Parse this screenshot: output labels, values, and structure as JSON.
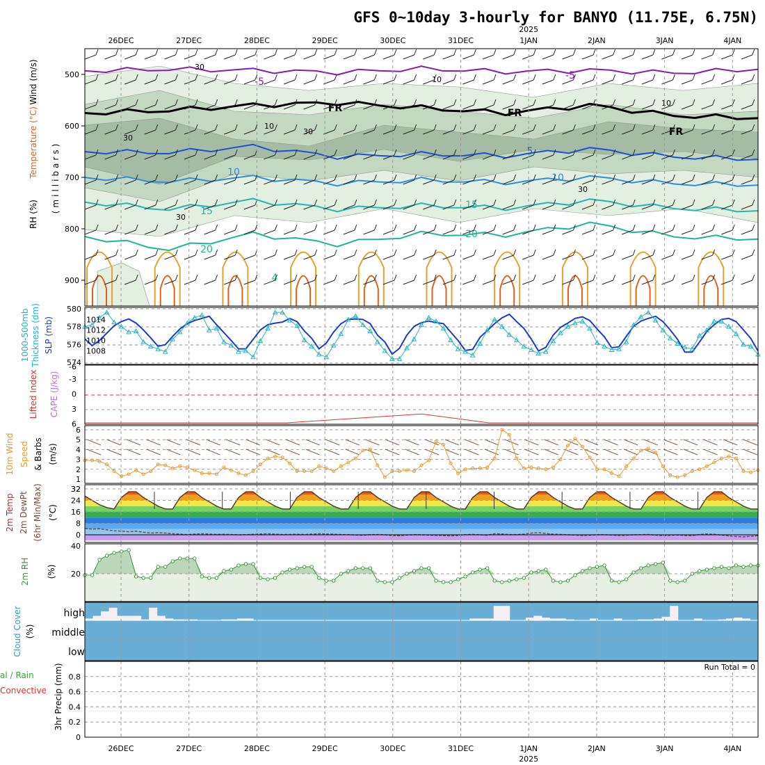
{
  "title": "GFS 0~10day 3-hourly for BANYO (11.75E, 6.75N)",
  "year_label": "2025",
  "run_total_label": "Run Total = 0",
  "colors": {
    "rh_fill_light": "#e3efe0",
    "rh_fill_mid": "#c2d8c0",
    "rh_fill_dark": "#a4bca4",
    "temp_purple": "#8a16b4",
    "temp_blue": "#1c4fd6",
    "temp_lightblue": "#2a8fe0",
    "temp_teal": "#1fb8b0",
    "temp_green": "#18b890",
    "temp_orange": "#e8a02a",
    "temp_darkorange": "#e06018",
    "slp": "#1a3cc8",
    "thickness": "#22b4c4",
    "lifted_index": "#e03030",
    "cape": "#c070e0",
    "wind10m": "#e89a30",
    "dewpoint": "#7a4a3a",
    "rh2m": "#3a9a3a",
    "cloud": "#6aaed6",
    "cloud_high": "#f4f0f4",
    "precip_total": "#33aa33",
    "precip_convective": "#e03030"
  },
  "chart_data": [
    {
      "type": "line",
      "panel": "upper-air cross section",
      "title": "Temperature (°C) / Wind (m/s) / RH (%)",
      "x_labels": [
        "26DEC",
        "27DEC",
        "28DEC",
        "29DEC",
        "30DEC",
        "31DEC",
        "1JAN",
        "2JAN",
        "3JAN",
        "4JAN"
      ],
      "ylabel": "(millibars)",
      "yticks": [
        500,
        600,
        700,
        800,
        900
      ],
      "ylim": [
        450,
        950
      ],
      "isotherm_labels": [
        "-5",
        "-5",
        "FR",
        "FR",
        "FR",
        "5",
        "10",
        "10",
        "15",
        "15",
        "20",
        "20",
        "4"
      ],
      "rh_labels": [
        "30",
        "30",
        "30",
        "30",
        "30",
        "10",
        "10",
        "10"
      ],
      "series": [
        {
          "name": "-5",
          "level": [
            493,
            490,
            492,
            496,
            489,
            495,
            492,
            497,
            490
          ]
        },
        {
          "name": "FR",
          "level": [
            575,
            570,
            560,
            555,
            565,
            575,
            560,
            580,
            585
          ]
        },
        {
          "name": "5",
          "level": [
            650,
            652,
            640,
            660,
            655,
            658,
            645,
            660,
            665
          ]
        },
        {
          "name": "10",
          "level": [
            700,
            708,
            700,
            712,
            705,
            710,
            700,
            712,
            715
          ]
        },
        {
          "name": "15",
          "level": [
            748,
            762,
            745,
            762,
            755,
            760,
            745,
            760,
            765
          ]
        },
        {
          "name": "20",
          "level": [
            815,
            840,
            810,
            830,
            810,
            812,
            790,
            815,
            820
          ]
        }
      ]
    },
    {
      "type": "line",
      "panel": "SLP and thickness",
      "ylabel_left": "1000-500mb Thickness (dm)",
      "ylabel_right": "SLP (mb)",
      "yticks_left": [
        574,
        576,
        578,
        580
      ],
      "yticks_right": [
        1008,
        1010,
        1012,
        1014
      ],
      "series": [
        {
          "name": "SLP (mb)",
          "values": [
            1010.3,
            1009.0,
            1010.0,
            1011.4,
            1012.8,
            1013.6,
            1014.1,
            1013.3,
            1012.0,
            1010.5,
            1008.9,
            1009.2,
            1010.8,
            1012.2,
            1013.2,
            1013.8,
            1014.2,
            1014.6,
            1013.0,
            1011.5,
            1010.0,
            1008.4,
            1008.4,
            1010.2,
            1012.0,
            1013.0,
            1013.3,
            1013.5,
            1014.2,
            1013.6,
            1011.8,
            1010.4,
            1008.4,
            1009.5,
            1011.6,
            1013.2,
            1014.0,
            1014.1,
            1014.0,
            1013.2,
            1011.0,
            1009.7,
            1007.4,
            1008.5,
            1011.0,
            1012.7,
            1013.4,
            1013.7,
            1013.4,
            1013.2,
            1011.6,
            1010.0,
            1008.1,
            1008.3,
            1010.6,
            1011.9,
            1013.2,
            1014.3,
            1015.0,
            1013.6,
            1012.3,
            1010.3,
            1008.0,
            1008.7,
            1011.0,
            1012.5,
            1013.3,
            1014.2,
            1014.5,
            1013.8,
            1012.2,
            1010.7,
            1008.6,
            1008.8,
            1010.8,
            1012.7,
            1013.7,
            1014.2,
            1014.6,
            1013.6,
            1012.0,
            1010.2,
            1007.8,
            1007.8,
            1009.7,
            1011.7,
            1013.0,
            1014.0,
            1014.2,
            1013.6,
            1012.0,
            1010.4,
            1008.0
          ]
        },
        {
          "name": "1000-500mb Thickness (dm)",
          "values": [
            578.0,
            578.2,
            579.0,
            579.6,
            578.5,
            578.0,
            577.4,
            577.5,
            576.3,
            575.8,
            575.5,
            575.2,
            576.6,
            577.4,
            578.4,
            579.0,
            579.3,
            577.6,
            577.8,
            576.3,
            575.9,
            575.2,
            575.3,
            574.6,
            576.4,
            577.8,
            579.6,
            579.6,
            578.7,
            578.1,
            576.5,
            575.8,
            574.9,
            574.6,
            575.9,
            577.2,
            578.8,
            579.2,
            578.2,
            577.5,
            576.3,
            575.3,
            574.4,
            574.4,
            575.6,
            576.6,
            578.2,
            579.0,
            578.6,
            577.8,
            576.5,
            575.5,
            575.2,
            574.8,
            576.1,
            577.6,
            578.8,
            578.0,
            577.1,
            576.5,
            575.8,
            575.4,
            575.0,
            575.2,
            576.4,
            577.3,
            578.0,
            578.4,
            578.6,
            577.8,
            576.2,
            575.8,
            575.4,
            575.5,
            576.3,
            578.2,
            579.1,
            579.6,
            578.7,
            577.6,
            576.7,
            576.1,
            575.7,
            575.5,
            577.0,
            577.6,
            578.6,
            578.6,
            578.0,
            577.2,
            576.0,
            575.8,
            574.9
          ]
        }
      ]
    },
    {
      "type": "line",
      "panel": "lifted index and CAPE",
      "ylabel_left": "Lifted Index",
      "ylabel_right": "CAPE (J/kg)",
      "yticks": [
        -3,
        0,
        3,
        6
      ],
      "values": [
        -6,
        -6,
        -6,
        -6,
        -5.2,
        -4.4,
        -6,
        -6,
        -6,
        -6,
        -6
      ]
    },
    {
      "type": "line",
      "panel": "10m wind",
      "ylabel": "10m Wind Speed (m/s) & Barbs",
      "yticks": [
        1,
        2,
        3,
        4,
        5,
        6
      ],
      "ylim": [
        1,
        6
      ],
      "values": [
        2.9,
        2.9,
        2.8,
        2.5,
        1.8,
        1.3,
        1.5,
        1.9,
        1.5,
        1.8,
        2.5,
        2.4,
        2.1,
        2.3,
        2.2,
        1.9,
        1.6,
        1.6,
        1.5,
        2.2,
        1.9,
        1.6,
        1.4,
        1.8,
        2.5,
        3.1,
        3.3,
        3.2,
        2.6,
        1.8,
        1.8,
        1.8,
        2.3,
        2.1,
        1.8,
        2.3,
        2.7,
        3.1,
        3.9,
        4.0,
        2.4,
        1.2,
        1.8,
        1.8,
        1.9,
        1.8,
        2.4,
        2.9,
        4.8,
        4.5,
        2.6,
        1.6,
        2.0,
        2.1,
        2.1,
        2.2,
        3.1,
        6.0,
        5.5,
        3.1,
        2.1,
        2.2,
        2.1,
        2.0,
        2.2,
        3.0,
        4.4,
        5.1,
        4.3,
        3.2,
        2.0,
        2.0,
        1.6,
        1.3,
        2.3,
        3.1,
        3.9,
        4.1,
        3.7,
        2.3,
        1.4,
        1.2,
        1.4,
        1.8,
        2.0,
        2.3,
        2.7,
        3.1,
        3.3,
        3.1,
        1.8,
        1.7,
        1.9
      ]
    },
    {
      "type": "area",
      "panel": "2m temperature",
      "ylabel": "2m Temp 2m DewPt (6hr Min/Max) (°C)",
      "yticks": [
        0,
        8,
        16,
        24,
        32
      ],
      "series": [
        {
          "name": "2m Temp",
          "values": [
            27,
            24,
            21,
            19,
            18,
            26,
            30,
            30,
            26,
            23,
            20,
            18,
            18,
            26,
            30,
            30,
            26,
            23,
            20,
            18,
            18,
            26,
            30,
            30,
            26,
            23,
            20,
            18,
            18,
            26,
            30,
            30,
            26,
            23,
            20,
            18,
            18,
            26,
            30,
            30,
            26,
            23,
            20,
            18,
            18,
            26,
            30,
            30,
            26,
            23,
            20,
            18,
            18,
            26,
            30,
            30,
            26,
            23,
            20,
            18,
            18,
            26,
            30,
            30,
            26,
            23,
            20,
            18,
            18,
            26,
            30,
            30,
            26,
            23,
            20,
            18,
            18,
            26,
            30,
            30,
            26,
            23,
            20,
            18,
            18,
            26,
            30,
            30,
            26,
            23,
            20,
            18,
            18
          ]
        },
        {
          "name": "2m DewPt",
          "values": [
            4.5,
            4.0,
            4.2,
            3.5,
            2.8,
            2.5,
            2.2,
            2.5,
            1.8,
            1.2,
            1.5,
            1.2,
            0.8,
            0.5,
            0.2,
            0.5,
            0.8,
            0.5,
            0.3,
            0.4,
            0.2,
            0.0,
            0.1,
            0.4,
            0.6,
            0.8,
            0.5,
            0.2,
            0.3,
            0.4,
            0.2,
            0.5,
            0.8,
            0.6,
            0.4,
            0.2,
            0.1,
            -0.2,
            -0.3,
            0.1,
            0.2,
            0.0,
            -0.5,
            -0.6,
            -0.2,
            0.1,
            0.0,
            -0.2,
            -0.4,
            -0.5,
            -0.8,
            -0.4,
            0.1,
            0.3,
            0.0,
            -0.3,
            0.8,
            0.6,
            0.2,
            0.2,
            0.5,
            1.2,
            1.5,
            0.9,
            0.5,
            0.3,
            0.0,
            -0.2,
            -0.5,
            -0.3,
            0.0,
            0.1,
            -0.2,
            -0.5,
            -0.3,
            0.0,
            0.1,
            0.2,
            -0.2,
            -0.6,
            -0.4,
            -0.1,
            -0.5,
            -0.6,
            0.2,
            0.6,
            0.4,
            -0.2,
            -0.8,
            -1.2,
            -1.4,
            -1.0,
            -0.6
          ]
        }
      ]
    },
    {
      "type": "area",
      "panel": "2m RH",
      "ylabel": "2m RH (%)",
      "yticks": [
        20,
        40
      ],
      "values": [
        19,
        19,
        30,
        33,
        35,
        36,
        37,
        18,
        17,
        17,
        25,
        25,
        29,
        31,
        31,
        31,
        18,
        17,
        17,
        22,
        23,
        26,
        27,
        27,
        17,
        16,
        17,
        21,
        23,
        24,
        25,
        25,
        17,
        15,
        15,
        20,
        22,
        24,
        24,
        24,
        15,
        14,
        14,
        17,
        20,
        22,
        24,
        24,
        15,
        14,
        14,
        16,
        18,
        21,
        23,
        24,
        15,
        14,
        15,
        16,
        17,
        21,
        22,
        23,
        15,
        14,
        15,
        19,
        22,
        24,
        25,
        26,
        15,
        14,
        16,
        21,
        24,
        26,
        27,
        28,
        15,
        14,
        15,
        20,
        22,
        23,
        24,
        25,
        24,
        26,
        25,
        26,
        26
      ]
    },
    {
      "type": "bar",
      "panel": "cloud cover",
      "ylabel": "Cloud Cover (%)",
      "levels": [
        "high",
        "middle",
        "low"
      ],
      "high_cover": [
        10,
        25,
        50,
        70,
        25,
        25,
        25,
        5,
        70,
        25,
        10,
        5,
        5,
        5,
        0,
        0,
        0,
        5,
        5,
        10,
        10,
        0,
        0,
        0,
        0,
        0,
        0,
        0,
        0,
        0,
        0,
        0,
        0,
        0,
        0,
        0,
        0,
        0,
        0,
        0,
        0,
        0,
        0,
        0,
        0,
        0,
        0,
        0,
        10,
        10,
        10,
        80,
        80,
        0,
        0,
        15,
        25,
        15,
        10,
        10,
        5,
        0,
        0,
        10,
        0,
        0,
        10,
        0,
        0,
        5,
        5,
        10,
        20,
        80,
        0,
        0,
        10,
        0,
        0,
        5,
        10,
        15,
        10,
        0
      ]
    },
    {
      "type": "bar",
      "panel": "precipitation",
      "ylabel": "3hr Precip (mm)",
      "legend": [
        "Total / Rain",
        "Convective"
      ],
      "yticks": [
        0,
        0.2,
        0.4,
        0.6,
        0.8
      ],
      "ylim": [
        0,
        1
      ],
      "values": [
        0,
        0,
        0,
        0,
        0,
        0,
        0,
        0,
        0,
        0
      ]
    }
  ],
  "labels": {
    "upper_wind": "Wind (m/s)",
    "upper_temp": "Temperature (°C)",
    "upper_rh": "RH (%)",
    "upper_mb": "(millibars)",
    "thick_a": "1000-500mb",
    "thick_b": "Thickness (dm)",
    "slp": "SLP (mb)",
    "li": "Lifted Index",
    "cape": "CAPE (J/kg)",
    "w10_a": "10m Wind",
    "w10_b": "Speed",
    "w10_c": "& Barbs",
    "w10_units": "(m/s)",
    "t2_a": "2m Temp",
    "t2_b": "2m DewPt",
    "t2_c": "(6hr Min/Max)",
    "t2_units": "(°C)",
    "rh2_a": "2m RH",
    "rh2_units": "(%)",
    "cc_a": "Cloud Cover",
    "cc_units": "(%)",
    "pr_a": "3hr Precip (mm)",
    "pr_total": "al / Rain",
    "pr_conv": "Convective"
  }
}
